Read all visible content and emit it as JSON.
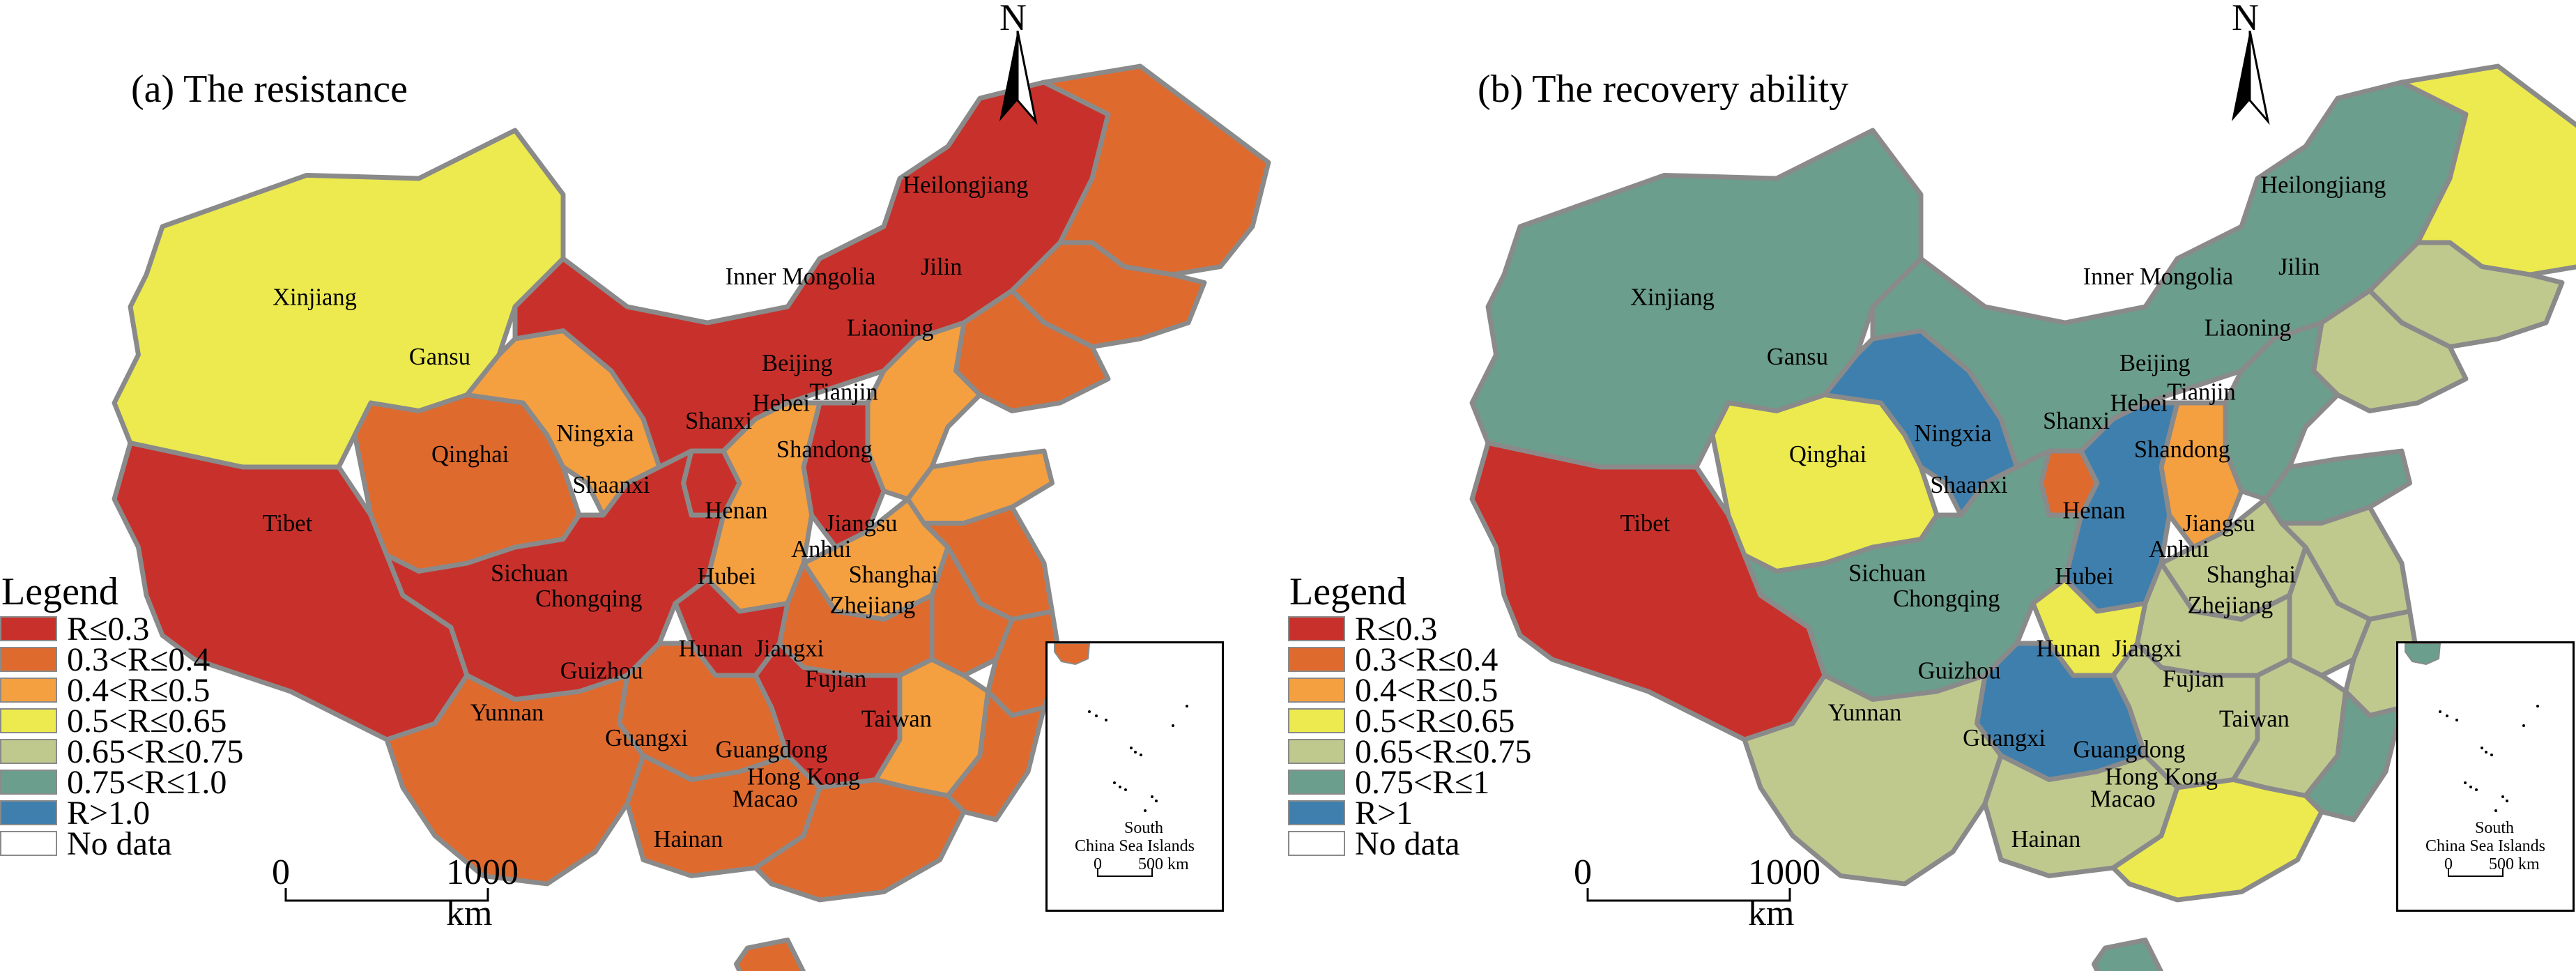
{
  "panels": [
    {
      "title": "(a) The resistance",
      "legend": {
        "title": "Legend",
        "items": [
          {
            "label": "R≤0.3",
            "color": "#c8312b"
          },
          {
            "label": "0.3<R≤0.4",
            "color": "#df6a2e"
          },
          {
            "label": "0.4<R≤0.5",
            "color": "#f4a041"
          },
          {
            "label": "0.5<R≤0.65",
            "color": "#ecea4f"
          },
          {
            "label": "0.65<R≤0.75",
            "color": "#bfc98e"
          },
          {
            "label": "0.75<R≤1.0",
            "color": "#6b9e8c"
          },
          {
            "label": "R>1.0",
            "color": "#3f7fad"
          },
          {
            "label": "No data",
            "color": "#ffffff"
          }
        ]
      },
      "scale_bar": {
        "start": "0",
        "end": "1000 km"
      },
      "north": "N",
      "inset": {
        "label_line1": "South",
        "label_line2": "China Sea Islands",
        "scale_start": "0",
        "scale_end": "500 km"
      },
      "labels": {
        "xinjiang": "Xinjiang",
        "tibet": "Tibet",
        "qinghai": "Qinghai",
        "gansu": "Gansu",
        "inner_mongolia": "Inner Mongolia",
        "heilongjiang": "Heilongjiang",
        "jilin": "Jilin",
        "liaoning": "Liaoning",
        "beijing": "Beijing",
        "tianjin": "Tianjin",
        "hebei": "Hebei",
        "shanxi": "Shanxi",
        "ningxia": "Ningxia",
        "shaanxi": "Shaanxi",
        "shandong": "Shandong",
        "henan": "Henan",
        "jiangsu": "Jiangsu",
        "anhui": "Anhui",
        "shanghai": "Shanghai",
        "zhejiang": "Zhejiang",
        "hubei": "Hubei",
        "sichuan": "Sichuan",
        "chongqing": "Chongqing",
        "hunan": "Hunan",
        "jiangxi": "Jiangxi",
        "fujian": "Fujian",
        "guizhou": "Guizhou",
        "yunnan": "Yunnan",
        "guangxi": "Guangxi",
        "guangdong": "Guangdong",
        "taiwan": "Taiwan",
        "hongkong": "Hong Kong",
        "macao": "Macao",
        "hainan": "Hainan"
      },
      "province_colors": {
        "xinjiang": "#ecea4f",
        "tibet": "#c8312b",
        "qinghai": "#df6a2e",
        "gansu": "#f4a041",
        "inner_mongolia": "#c8312b",
        "heilongjiang": "#df6a2e",
        "jilin": "#df6a2e",
        "liaoning": "#df6a2e",
        "hebei": "#f4a041",
        "shanxi": "#c8312b",
        "ningxia": "#c8312b",
        "shaanxi": "#f4a041",
        "shandong": "#f4a041",
        "henan": "#f4a041",
        "jiangsu": "#df6a2e",
        "anhui": "#df6a2e",
        "zhejiang": "#df6a2e",
        "hubei": "#df6a2e",
        "sichuan": "#c8312b",
        "chongqing": "#c8312b",
        "hunan": "#c8312b",
        "jiangxi": "#f4a041",
        "fujian": "#df6a2e",
        "guizhou": "#df6a2e",
        "yunnan": "#df6a2e",
        "guangxi": "#df6a2e",
        "guangdong": "#df6a2e",
        "hainan": "#df6a2e"
      }
    },
    {
      "title": "(b) The recovery ability",
      "legend": {
        "title": "Legend",
        "items": [
          {
            "label": "R≤0.3",
            "color": "#c8312b"
          },
          {
            "label": "0.3<R≤0.4",
            "color": "#df6a2e"
          },
          {
            "label": "0.4<R≤0.5",
            "color": "#f4a041"
          },
          {
            "label": "0.5<R≤0.65",
            "color": "#ecea4f"
          },
          {
            "label": "0.65<R≤0.75",
            "color": "#bfc98e"
          },
          {
            "label": "0.75<R≤1",
            "color": "#6b9e8c"
          },
          {
            "label": "R>1",
            "color": "#3f7fad"
          },
          {
            "label": "No data",
            "color": "#ffffff"
          }
        ]
      },
      "scale_bar": {
        "start": "0",
        "end": "1000 km"
      },
      "north": "N",
      "inset": {
        "label_line1": "South",
        "label_line2": "China Sea Islands",
        "scale_start": "0",
        "scale_end": "500 km"
      },
      "labels": {
        "xinjiang": "Xinjiang",
        "tibet": "Tibet",
        "qinghai": "Qinghai",
        "gansu": "Gansu",
        "inner_mongolia": "Inner Mongolia",
        "heilongjiang": "Heilongjiang",
        "jilin": "Jilin",
        "liaoning": "Liaoning",
        "beijing": "Beijing",
        "tianjin": "Tianjin",
        "hebei": "Hebei",
        "shanxi": "Shanxi",
        "ningxia": "Ningxia",
        "shaanxi": "Shaanxi",
        "shandong": "Shandong",
        "henan": "Henan",
        "jiangsu": "Jiangsu",
        "anhui": "Anhui",
        "shanghai": "Shanghai",
        "zhejiang": "Zhejiang",
        "hubei": "Hubei",
        "sichuan": "Sichuan",
        "chongqing": "Chongqing",
        "hunan": "Hunan",
        "jiangxi": "Jiangxi",
        "fujian": "Fujian",
        "guizhou": "Guizhou",
        "yunnan": "Yunnan",
        "guangxi": "Guangxi",
        "guangdong": "Guangdong",
        "taiwan": "Taiwan",
        "hongkong": "Hong Kong",
        "macao": "Macao",
        "hainan": "Hainan"
      },
      "province_colors": {
        "xinjiang": "#6b9e8c",
        "tibet": "#c8312b",
        "qinghai": "#ecea4f",
        "gansu": "#3f7fad",
        "inner_mongolia": "#6b9e8c",
        "heilongjiang": "#ecea4f",
        "jilin": "#bfc98e",
        "liaoning": "#bfc98e",
        "hebei": "#6b9e8c",
        "shanxi": "#f4a041",
        "ningxia": "#df6a2e",
        "shaanxi": "#3f7fad",
        "shandong": "#6b9e8c",
        "henan": "#bfc98e",
        "jiangsu": "#bfc98e",
        "anhui": "#bfc98e",
        "zhejiang": "#bfc98e",
        "hubei": "#bfc98e",
        "sichuan": "#6b9e8c",
        "chongqing": "#ecea4f",
        "hunan": "#bfc98e",
        "jiangxi": "#bfc98e",
        "fujian": "#6b9e8c",
        "guizhou": "#3f7fad",
        "yunnan": "#bfc98e",
        "guangxi": "#bfc98e",
        "guangdong": "#ecea4f",
        "hainan": "#6b9e8c"
      }
    }
  ]
}
